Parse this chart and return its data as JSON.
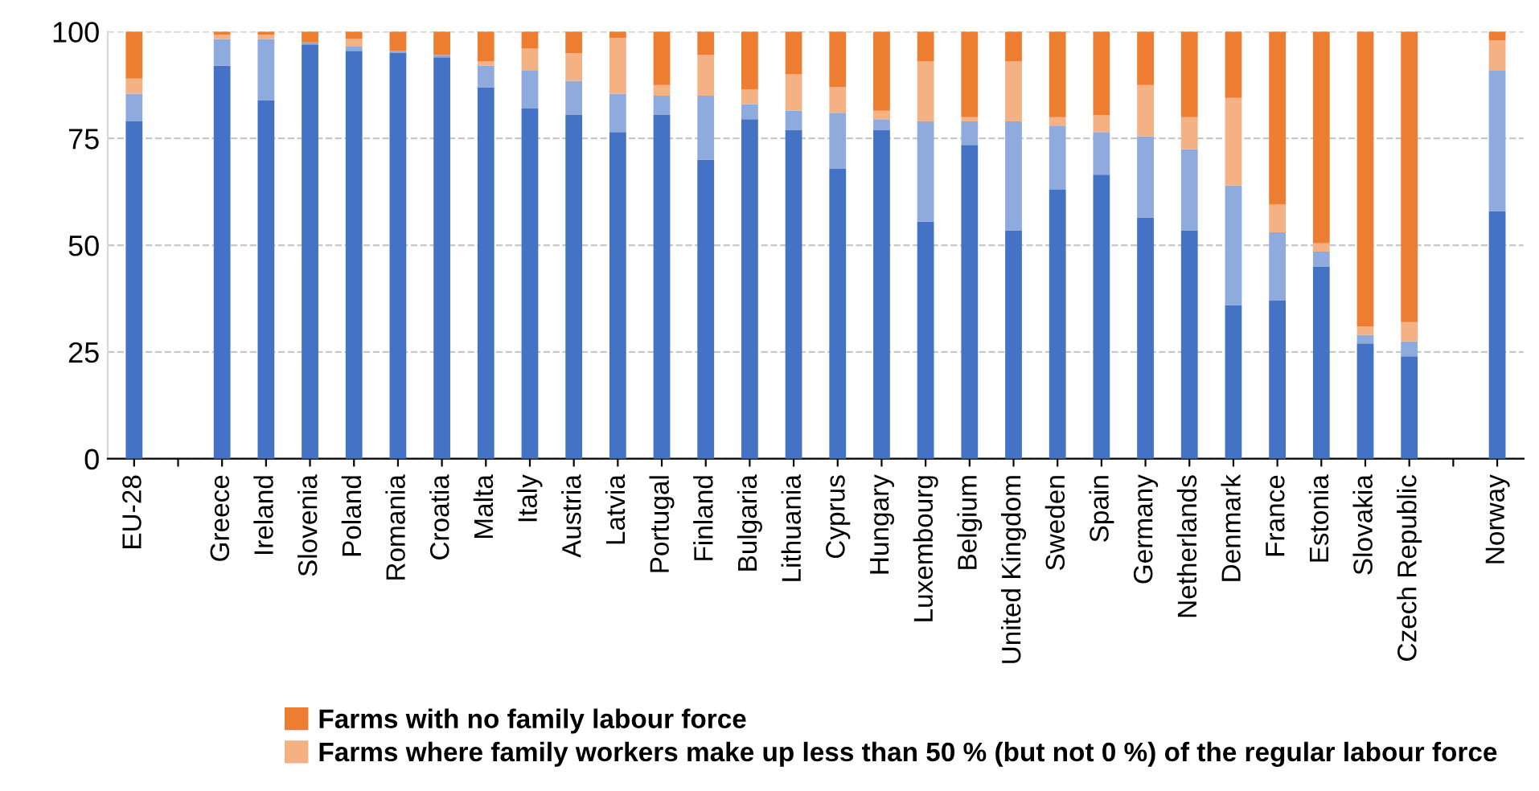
{
  "chart_data": {
    "type": "bar",
    "stacked": true,
    "categories": [
      "EU-28",
      null,
      "Greece",
      "Ireland",
      "Slovenia",
      "Poland",
      "Romania",
      "Croatia",
      "Malta",
      "Italy",
      "Austria",
      "Latvia",
      "Portugal",
      "Finland",
      "Bulgaria",
      "Lithuania",
      "Cyprus",
      "Hungary",
      "Luxembourg",
      "Belgium",
      "United Kingdom",
      "Sweden",
      "Spain",
      "Germany",
      "Netherlands",
      "Denmark",
      "France",
      "Estonia",
      "Slovakia",
      "Czech Republic",
      null,
      "Norway"
    ],
    "series": [
      {
        "color": "#4472c4",
        "values": [
          79,
          null,
          92,
          84,
          97,
          95.5,
          95,
          94,
          87,
          82,
          80.5,
          76.5,
          80.5,
          70,
          79.5,
          77,
          68,
          77,
          55.5,
          73.5,
          53.5,
          63,
          66.5,
          56.5,
          53.5,
          36,
          37,
          45,
          27,
          24,
          null,
          58
        ]
      },
      {
        "color": "#8faadc",
        "values": [
          6.5,
          null,
          6.3,
          14.3,
          0.5,
          1,
          0.5,
          0.5,
          5,
          9,
          8,
          9,
          4.5,
          15,
          3.5,
          4.5,
          13,
          2.5,
          23.5,
          5.5,
          25.5,
          15,
          10,
          19,
          19,
          28,
          16,
          3.5,
          2,
          3.5,
          null,
          33
        ]
      },
      {
        "name": "Farms where family workers make up less than 50 % (but not 0 %) of the regular labour force",
        "color": "#f4b183",
        "values": [
          3.5,
          null,
          1,
          1,
          0,
          1.8,
          0,
          0,
          1,
          5,
          6.5,
          13,
          2.5,
          9.5,
          3.5,
          8.5,
          6,
          2,
          14,
          1,
          14,
          2,
          4,
          12,
          7.5,
          20.5,
          6.5,
          2,
          2,
          4.5,
          null,
          7
        ]
      },
      {
        "name": "Farms with no family labour force",
        "color": "#ed7d31",
        "values": [
          11,
          null,
          0.7,
          0.7,
          2.5,
          1.7,
          4.5,
          5.5,
          7,
          4,
          5,
          1.5,
          12.5,
          5.5,
          13.5,
          10,
          13,
          18.5,
          7,
          20,
          7,
          20,
          19.5,
          12.5,
          20,
          15.5,
          40.5,
          49.5,
          69,
          68,
          null,
          2
        ]
      }
    ],
    "ylim": [
      0,
      100
    ],
    "yticks": [
      0,
      25,
      50,
      75,
      100
    ],
    "grid": "y",
    "legend": "bottom"
  }
}
